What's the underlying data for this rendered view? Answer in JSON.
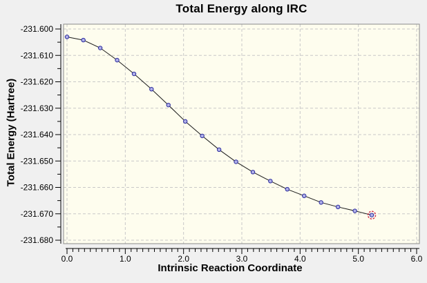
{
  "chart_data": {
    "type": "line",
    "title": "Total Energy along IRC",
    "xlabel": "Intrinsic Reaction Coordinate",
    "ylabel": "Total Energy (Hartree)",
    "xlim": [
      0.0,
      6.0
    ],
    "ylim": [
      -231.68,
      -231.6
    ],
    "x_tick_labels": [
      "0.0",
      "1.0",
      "2.0",
      "3.0",
      "4.0",
      "5.0",
      "6.0"
    ],
    "y_tick_labels": [
      "-231.600",
      "-231.610",
      "-231.620",
      "-231.630",
      "-231.640",
      "-231.650",
      "-231.660",
      "-231.670",
      "-231.680"
    ],
    "x_minor_step": 0.1,
    "y_minor_step": 0.005,
    "grid": "dashed-major-both",
    "legend": "none",
    "series": [
      {
        "name": "Total Energy",
        "x": [
          0.0,
          0.28,
          0.57,
          0.86,
          1.15,
          1.45,
          1.74,
          2.03,
          2.32,
          2.61,
          2.9,
          3.19,
          3.49,
          3.78,
          4.07,
          4.36,
          4.65,
          4.94,
          5.23
        ],
        "y": [
          -231.603,
          -231.6042,
          -231.6072,
          -231.6118,
          -231.617,
          -231.6228,
          -231.6288,
          -231.635,
          -231.6405,
          -231.6457,
          -231.6503,
          -231.6542,
          -231.6576,
          -231.6607,
          -231.6632,
          -231.6657,
          -231.6674,
          -231.6689,
          -231.6705
        ]
      }
    ],
    "selected_point_index": 18
  },
  "colors": {
    "page_bg": "#f0f0f0",
    "plot_bg": "#fefdee",
    "plot_border": "#8a8a8a",
    "grid": "#c8c8c8",
    "axis": "#000000",
    "text": "#000000",
    "line": "#1a1a1a",
    "marker_fill": "#b0b0e8",
    "marker_edge": "#2a2a9e",
    "selection_ring": "#cc2244"
  }
}
